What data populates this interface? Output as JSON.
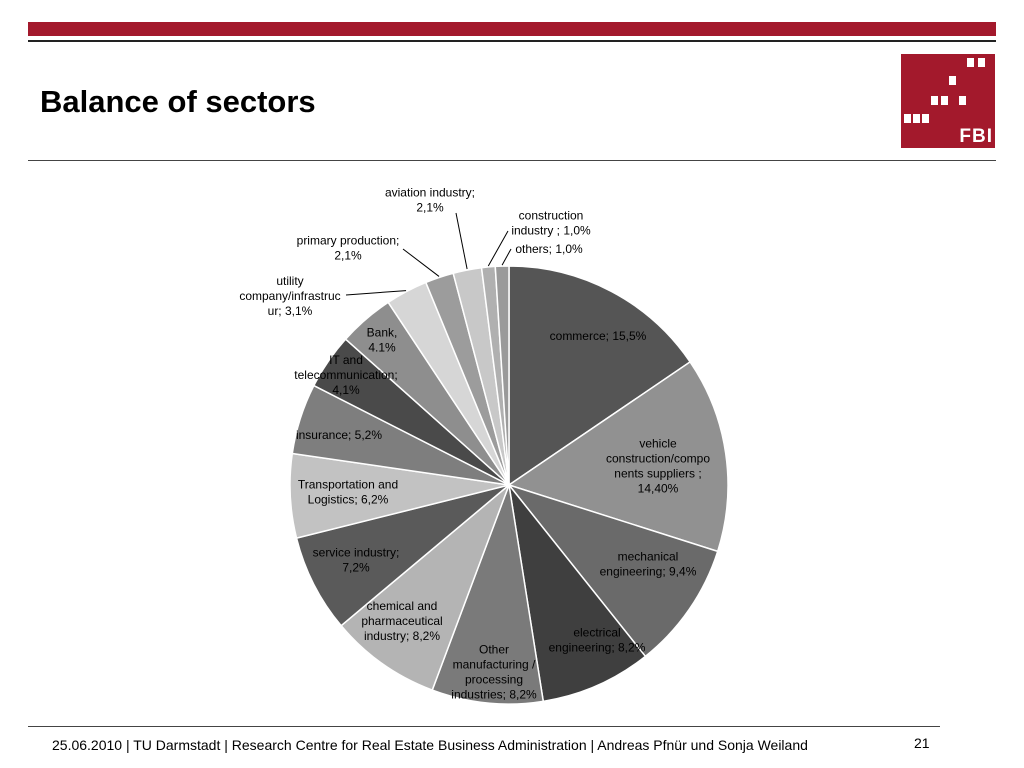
{
  "slide": {
    "title": "Balance of sectors",
    "logo_text": "FBI",
    "footer": "25.06.2010  | TU Darmstadt | Research Centre for Real Estate Business Administration |  Andreas Pfnür und Sonja Weiland",
    "page_number": "21"
  },
  "colors": {
    "accent": "#a3192c"
  },
  "chart_data": {
    "type": "pie",
    "start": "12 o'clock, clockwise",
    "slices": [
      {
        "lines": [
          "commerce; 15,5%"
        ],
        "value": 15.5,
        "color": "#555555"
      },
      {
        "lines": [
          "vehicle",
          "construction/compo",
          "nents suppliers ;",
          "14,40%"
        ],
        "value": 14.4,
        "color": "#919191"
      },
      {
        "lines": [
          "mechanical",
          "engineering; 9,4%"
        ],
        "value": 9.4,
        "color": "#6a6a6a"
      },
      {
        "lines": [
          "electrical",
          "engineering; 8,2%"
        ],
        "value": 8.2,
        "color": "#3f3f3f"
      },
      {
        "lines": [
          "Other",
          "manufacturing /",
          "processing",
          "industries; 8,2%"
        ],
        "value": 8.2,
        "color": "#7a7a7a"
      },
      {
        "lines": [
          "chemical and",
          "pharmaceutical",
          "industry; 8,2%"
        ],
        "value": 8.2,
        "color": "#b4b4b4"
      },
      {
        "lines": [
          "service industry;",
          "7,2%"
        ],
        "value": 7.2,
        "color": "#5a5a5a"
      },
      {
        "lines": [
          "Transportation and",
          "Logistics; 6,2%"
        ],
        "value": 6.2,
        "color": "#c2c2c2"
      },
      {
        "lines": [
          "insurance; 5,2%"
        ],
        "value": 5.2,
        "color": "#7e7e7e"
      },
      {
        "lines": [
          "IT and",
          "telecommunication;",
          "4,1%"
        ],
        "value": 4.1,
        "color": "#4a4a4a"
      },
      {
        "lines": [
          "Bank,",
          "4.1%"
        ],
        "value": 4.1,
        "color": "#8e8e8e"
      },
      {
        "lines": [
          "utility",
          "company/infrastruc",
          "ur; 3,1%"
        ],
        "value": 3.1,
        "color": "#d6d6d6"
      },
      {
        "lines": [
          "primary production;",
          "2,1%"
        ],
        "value": 2.1,
        "color": "#9c9c9c"
      },
      {
        "lines": [
          "aviation industry;",
          "2,1%"
        ],
        "value": 2.1,
        "color": "#c8c8c8"
      },
      {
        "lines": [
          "construction",
          "industry ; 1,0%"
        ],
        "value": 1.0,
        "color": "#b0b0b0"
      },
      {
        "lines": [
          "others; 1,0%"
        ],
        "value": 1.0,
        "color": "#9a9a9a"
      }
    ]
  }
}
